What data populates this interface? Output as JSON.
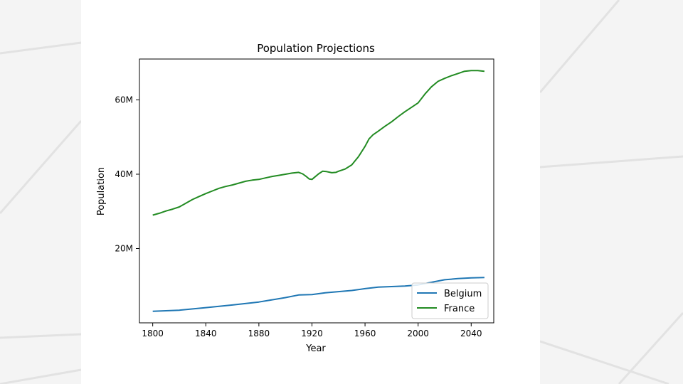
{
  "chart_data": {
    "type": "line",
    "title": "Population Projections",
    "xlabel": "Year",
    "ylabel": "Population",
    "xlim": [
      1790,
      2057
    ],
    "ylim": [
      0,
      71000000
    ],
    "x_ticks": [
      1800,
      1840,
      1880,
      1920,
      1960,
      2000,
      2040
    ],
    "x_tick_labels": [
      "1800",
      "1840",
      "1880",
      "1920",
      "1960",
      "2000",
      "2040"
    ],
    "y_ticks": [
      20000000,
      40000000,
      60000000
    ],
    "y_tick_labels": [
      "20M",
      "40M",
      "60M"
    ],
    "grid": false,
    "legend_position": "lower-right",
    "series": [
      {
        "name": "Belgium",
        "color": "#1f77b4",
        "x": [
          1800,
          1820,
          1840,
          1860,
          1880,
          1900,
          1910,
          1920,
          1930,
          1950,
          1960,
          1970,
          1990,
          2000,
          2010,
          2020,
          2030,
          2040,
          2050
        ],
        "y": [
          3100000,
          3400000,
          4100000,
          4800000,
          5600000,
          6800000,
          7500000,
          7600000,
          8100000,
          8700000,
          9200000,
          9600000,
          9900000,
          10200000,
          10900000,
          11600000,
          11900000,
          12100000,
          12200000
        ]
      },
      {
        "name": "France",
        "color": "#228b22",
        "x": [
          1800,
          1805,
          1810,
          1815,
          1820,
          1825,
          1830,
          1835,
          1840,
          1845,
          1850,
          1855,
          1860,
          1865,
          1870,
          1875,
          1880,
          1885,
          1890,
          1895,
          1900,
          1905,
          1910,
          1913,
          1916,
          1918,
          1920,
          1922,
          1925,
          1928,
          1931,
          1935,
          1938,
          1940,
          1945,
          1950,
          1955,
          1960,
          1963,
          1966,
          1970,
          1975,
          1980,
          1985,
          1990,
          1995,
          2000,
          2005,
          2010,
          2015,
          2020,
          2025,
          2030,
          2035,
          2040,
          2045,
          2050
        ],
        "y": [
          29000000,
          29500000,
          30100000,
          30600000,
          31200000,
          32200000,
          33200000,
          34000000,
          34800000,
          35500000,
          36200000,
          36700000,
          37100000,
          37600000,
          38100000,
          38400000,
          38600000,
          39000000,
          39400000,
          39700000,
          40000000,
          40300000,
          40500000,
          40100000,
          39300000,
          38700000,
          38600000,
          39200000,
          40100000,
          40800000,
          40700000,
          40400000,
          40500000,
          40800000,
          41400000,
          42500000,
          44700000,
          47500000,
          49500000,
          50600000,
          51600000,
          52900000,
          54100000,
          55500000,
          56800000,
          58000000,
          59200000,
          61500000,
          63500000,
          65000000,
          65800000,
          66500000,
          67100000,
          67700000,
          67900000,
          67900000,
          67700000
        ]
      }
    ]
  }
}
